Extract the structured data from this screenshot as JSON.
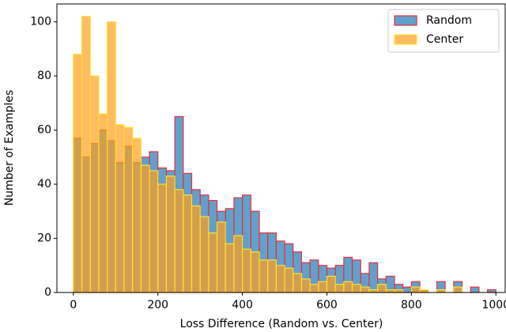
{
  "chart_data": {
    "type": "histogram",
    "xlabel": "Loss Difference (Random vs. Center)",
    "ylabel": "Number of Examples",
    "bins": [
      0,
      20,
      40,
      60,
      80,
      100,
      120,
      140,
      160,
      180,
      200,
      220,
      240,
      260,
      280,
      300,
      320,
      340,
      360,
      380,
      400,
      420,
      440,
      460,
      480,
      500,
      520,
      540,
      560,
      580,
      600,
      620,
      640,
      660,
      680,
      700,
      720,
      740,
      760,
      780,
      800,
      820,
      840,
      860,
      880,
      900,
      920,
      940,
      960,
      980,
      1000
    ],
    "series": [
      {
        "name": "Random",
        "color": "#1f77b4",
        "edgecolor": "#e8303a",
        "values": [
          57,
          50,
          55,
          60,
          56,
          48,
          54,
          48,
          50,
          52,
          46,
          45,
          65,
          44,
          38,
          36,
          34,
          30,
          31,
          35,
          36,
          30,
          22,
          22,
          19,
          18,
          15,
          11,
          12,
          10,
          9,
          10,
          13,
          12,
          7,
          11,
          5,
          6,
          3,
          2,
          4,
          1,
          0,
          4,
          0,
          4,
          0,
          2,
          0,
          1
        ]
      },
      {
        "name": "Center",
        "color": "#ff9f1c",
        "edgecolor": "#ffe033",
        "values": [
          88,
          102,
          80,
          66,
          100,
          62,
          61,
          57,
          47,
          45,
          40,
          43,
          38,
          36,
          32,
          28,
          22,
          26,
          18,
          21,
          16,
          15,
          12,
          12,
          10,
          9,
          7,
          5,
          3,
          4,
          6,
          3,
          4,
          3,
          2,
          1,
          3,
          1,
          1,
          0,
          2,
          1,
          0,
          1,
          0,
          2,
          0,
          0,
          0,
          0
        ]
      }
    ],
    "xlim": [
      -39,
      1022
    ],
    "ylim": [
      0,
      106.6
    ],
    "xticks": [
      0,
      200,
      400,
      600,
      800,
      1000
    ],
    "yticks": [
      0,
      20,
      40,
      60,
      80,
      100
    ],
    "legend": "upper right"
  }
}
